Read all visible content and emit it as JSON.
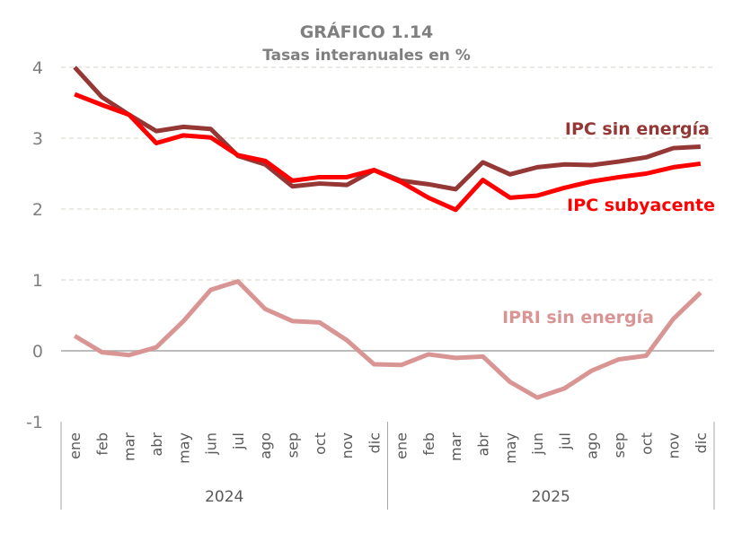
{
  "chart_data": {
    "type": "line",
    "title": "GRÁFICO 1.14",
    "subtitle": "Tasas interanuales en %",
    "xlabel": "",
    "ylabel": "",
    "ylim": [
      -1,
      4
    ],
    "yticks": [
      "4",
      "3",
      "2",
      "1",
      "0",
      "-1"
    ],
    "grid": true,
    "categories": [
      "ene",
      "feb",
      "mar",
      "abr",
      "may",
      "jun",
      "jul",
      "ago",
      "sep",
      "oct",
      "nov",
      "dic",
      "ene",
      "feb",
      "mar",
      "abr",
      "may",
      "jun",
      "jul",
      "ago",
      "sep",
      "oct",
      "nov",
      "dic"
    ],
    "years": [
      "2024",
      "2025"
    ],
    "series": [
      {
        "name": "IPC sin energía",
        "color": "#953735",
        "values": [
          4.0,
          3.58,
          3.33,
          3.1,
          3.16,
          3.13,
          2.75,
          2.63,
          2.32,
          2.36,
          2.34,
          2.55,
          2.4,
          2.35,
          2.28,
          2.66,
          2.49,
          2.59,
          2.63,
          2.62,
          2.67,
          2.73,
          2.86,
          2.88
        ]
      },
      {
        "name": "IPC subyacente",
        "color": "#ff0000",
        "values": [
          3.62,
          3.47,
          3.33,
          2.93,
          3.04,
          3.01,
          2.76,
          2.68,
          2.4,
          2.45,
          2.45,
          2.55,
          2.38,
          2.16,
          1.99,
          2.41,
          2.16,
          2.19,
          2.3,
          2.39,
          2.45,
          2.5,
          2.59,
          2.64
        ]
      },
      {
        "name": "IPRI sin energía",
        "color": "#d99594",
        "values": [
          0.21,
          -0.02,
          -0.06,
          0.05,
          0.42,
          0.86,
          0.98,
          0.59,
          0.42,
          0.4,
          0.15,
          -0.19,
          -0.2,
          -0.05,
          -0.1,
          -0.08,
          -0.44,
          -0.66,
          -0.53,
          -0.28,
          -0.12,
          -0.07,
          0.45,
          0.82
        ]
      }
    ]
  }
}
